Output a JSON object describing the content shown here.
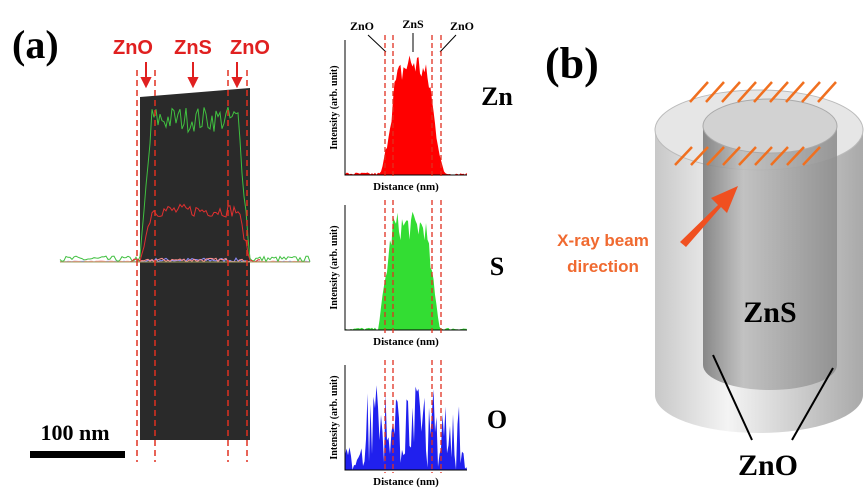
{
  "panel_a": {
    "label": "(a)",
    "tem_image": {
      "markers": [
        "ZnO",
        "ZnS",
        "ZnO"
      ],
      "scale_bar": "100 nm"
    },
    "profiles": {
      "markers": [
        "ZnO",
        "ZnS",
        "ZnO"
      ],
      "plots": [
        {
          "element": "Zn",
          "y_label": "Intensity (arb. unit)",
          "x_label": "Distance (nm)"
        },
        {
          "element": "S",
          "y_label": "Intensity (arb. unit)",
          "x_label": "Distance (nm)"
        },
        {
          "element": "O",
          "y_label": "Intensity (arb. unit)",
          "x_label": "Distance (nm)"
        }
      ]
    }
  },
  "panel_b": {
    "label": "(b)",
    "beam_label": [
      "X-ray beam",
      "direction"
    ],
    "core": "ZnS",
    "shell": "ZnO"
  }
}
